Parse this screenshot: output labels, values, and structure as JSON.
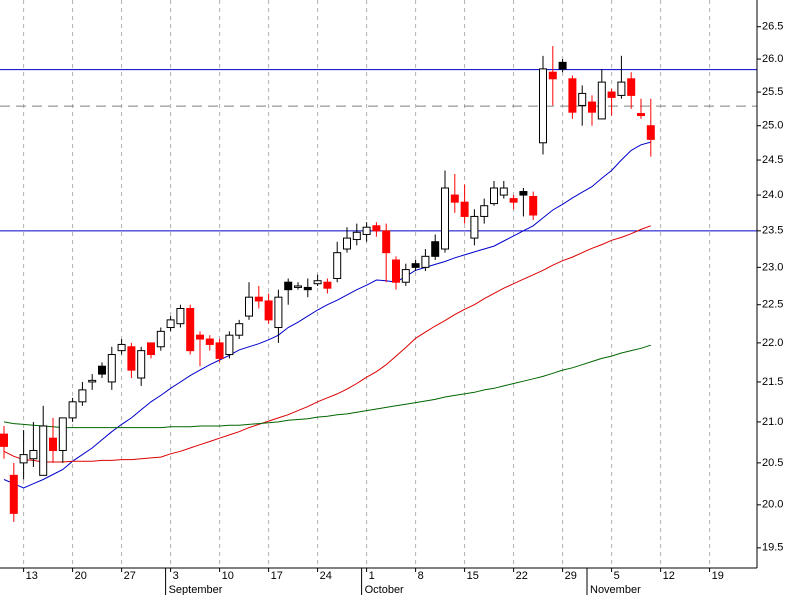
{
  "chart_data": {
    "type": "candlestick",
    "log_scale": true,
    "ylim": [
      19.27,
      26.92
    ],
    "yticks": [
      {
        "value": 19.5,
        "label": "19.5"
      },
      {
        "value": 20,
        "label": "20.0"
      },
      20.5,
      {
        "value": 21,
        "label": "21.0"
      },
      21.5,
      {
        "value": 22,
        "label": "22.0"
      },
      22.5,
      {
        "value": 23,
        "label": "23.0"
      },
      23.5,
      {
        "value": 24,
        "label": "24.0"
      },
      24.5,
      {
        "value": 25,
        "label": "25.0"
      },
      25.5,
      {
        "value": 26,
        "label": "26.0"
      },
      26.5
    ],
    "categories": [
      null,
      null,
      "13",
      null,
      null,
      null,
      null,
      "20",
      null,
      null,
      null,
      null,
      "27",
      null,
      null,
      null,
      null,
      "3",
      null,
      null,
      null,
      null,
      "10",
      null,
      null,
      null,
      null,
      "17",
      null,
      null,
      null,
      null,
      "24",
      null,
      null,
      null,
      null,
      "1",
      null,
      null,
      null,
      null,
      "8",
      null,
      null,
      null,
      null,
      "15",
      null,
      null,
      null,
      null,
      "22",
      null,
      null,
      null,
      null,
      "29",
      null,
      null,
      null,
      null,
      "5",
      null,
      null,
      null,
      null,
      "12",
      null,
      null,
      null,
      null,
      "19",
      null,
      null,
      null,
      null
    ],
    "month_labels": [
      null,
      null,
      null,
      null,
      null,
      null,
      null,
      null,
      null,
      null,
      null,
      null,
      null,
      null,
      null,
      null,
      null,
      "September",
      null,
      null,
      null,
      null,
      null,
      null,
      null,
      null,
      null,
      null,
      null,
      null,
      null,
      null,
      null,
      null,
      null,
      null,
      null,
      "October",
      null,
      null,
      null,
      null,
      null,
      null,
      null,
      null,
      null,
      null,
      null,
      null,
      null,
      null,
      null,
      null,
      null,
      null,
      null,
      null,
      null,
      null,
      "November",
      null,
      null,
      null,
      null,
      null,
      null,
      null,
      null,
      null,
      null,
      null,
      null,
      null,
      null,
      null,
      null
    ],
    "open": [
      20.85,
      20.35,
      20.5,
      20.55,
      20.35,
      20.8,
      20.65,
      21.05,
      21.25,
      21.5,
      21.6,
      21.5,
      21.9,
      21.95,
      21.55,
      22.0,
      21.95,
      22.2,
      22.25,
      22.45,
      22.1,
      22.05,
      22.0,
      21.85,
      22.1,
      22.35,
      22.6,
      22.55,
      22.2,
      22.7,
      22.73,
      22.7,
      22.78,
      22.8,
      22.85,
      23.25,
      23.38,
      23.45,
      23.57,
      23.5,
      23.1,
      22.8,
      23.0,
      23.0,
      23.15,
      23.25,
      24.0,
      23.9,
      23.4,
      23.7,
      23.88,
      24.0,
      23.95,
      24.0,
      23.98,
      24.75,
      25.8,
      25.85,
      25.7,
      25.3,
      25.35,
      25.1,
      25.5,
      25.45,
      25.7,
      25.18,
      25.0,
      null,
      null,
      null,
      null,
      null,
      null,
      null,
      null,
      null,
      null
    ],
    "high": [
      20.95,
      20.5,
      20.9,
      21.0,
      21.2,
      21.05,
      21.05,
      21.3,
      21.5,
      21.6,
      21.75,
      21.95,
      22.05,
      22.0,
      21.95,
      22.0,
      22.2,
      22.35,
      22.5,
      22.5,
      22.15,
      22.1,
      22.05,
      22.15,
      22.3,
      22.8,
      22.75,
      22.65,
      22.7,
      22.85,
      22.8,
      22.85,
      22.9,
      22.85,
      23.35,
      23.55,
      23.6,
      23.62,
      23.62,
      23.6,
      23.15,
      23.05,
      23.1,
      23.25,
      23.45,
      24.35,
      24.3,
      24.15,
      23.8,
      23.95,
      24.2,
      24.2,
      24.0,
      24.1,
      24.05,
      26.05,
      26.2,
      26.0,
      25.75,
      25.6,
      25.45,
      25.85,
      25.55,
      26.05,
      25.8,
      25.4,
      25.4,
      null,
      null,
      null,
      null,
      null,
      null,
      null,
      null,
      null,
      null
    ],
    "low": [
      20.55,
      19.8,
      20.3,
      20.45,
      20.35,
      20.5,
      20.5,
      21.0,
      21.2,
      21.4,
      21.55,
      21.4,
      21.85,
      21.55,
      21.45,
      21.8,
      21.9,
      22.15,
      22.2,
      21.85,
      21.7,
      21.9,
      21.75,
      21.8,
      22.05,
      22.3,
      22.45,
      22.25,
      22.0,
      22.5,
      22.7,
      22.6,
      22.75,
      22.65,
      22.8,
      23.2,
      23.3,
      23.35,
      23.42,
      22.8,
      22.7,
      22.75,
      22.95,
      22.95,
      23.1,
      23.2,
      23.75,
      23.6,
      23.3,
      23.6,
      23.85,
      23.95,
      23.8,
      23.7,
      23.65,
      24.58,
      25.3,
      25.8,
      25.1,
      25.0,
      25.0,
      25.1,
      25.15,
      25.4,
      25.25,
      25.1,
      24.55,
      null,
      null,
      null,
      null,
      null,
      null,
      null,
      null,
      null,
      null
    ],
    "close": [
      20.7,
      19.9,
      20.6,
      20.65,
      20.95,
      20.65,
      21.05,
      21.25,
      21.4,
      21.52,
      21.7,
      21.85,
      21.98,
      21.65,
      21.9,
      21.85,
      22.15,
      22.3,
      22.45,
      21.9,
      22.05,
      21.98,
      21.8,
      22.1,
      22.25,
      22.6,
      22.55,
      22.3,
      22.6,
      22.8,
      22.75,
      22.73,
      22.82,
      22.72,
      23.2,
      23.4,
      23.48,
      23.55,
      23.5,
      23.2,
      22.8,
      22.97,
      23.05,
      23.15,
      23.35,
      24.1,
      23.9,
      23.7,
      23.7,
      23.85,
      24.1,
      24.1,
      23.9,
      24.05,
      23.72,
      25.85,
      25.7,
      25.95,
      25.2,
      25.48,
      25.2,
      25.65,
      25.42,
      25.65,
      25.45,
      25.15,
      24.8,
      null,
      null,
      null,
      null,
      null,
      null,
      null,
      null,
      null,
      null
    ],
    "candle_colors": [
      "#ff0000",
      "#ff0000",
      "#ffffff",
      "#ffffff",
      "#ffffff",
      "#ff0000",
      "#ffffff",
      "#ffffff",
      "#ffffff",
      "#ffffff",
      "#000000",
      "#ffffff",
      "#ffffff",
      "#ff0000",
      "#ffffff",
      "#ff0000",
      "#ffffff",
      "#ffffff",
      "#ffffff",
      "#ff0000",
      "#ff0000",
      "#ff0000",
      "#ff0000",
      "#ffffff",
      "#ffffff",
      "#ffffff",
      "#ff0000",
      "#ff0000",
      "#ffffff",
      "#000000",
      "#ffffff",
      "#000000",
      "#ffffff",
      "#ff0000",
      "#ffffff",
      "#ffffff",
      "#ffffff",
      "#ffffff",
      "#ff0000",
      "#ff0000",
      "#ff0000",
      "#ffffff",
      "#000000",
      "#ffffff",
      "#000000",
      "#ffffff",
      "#ff0000",
      "#ff0000",
      "#ffffff",
      "#ffffff",
      "#ffffff",
      "#ffffff",
      "#ff0000",
      "#000000",
      "#ff0000",
      "#ffffff",
      "#ff0000",
      "#000000",
      "#ff0000",
      "#ffffff",
      "#ff0000",
      "#ffffff",
      "#ff0000",
      "#ffffff",
      "#ff0000",
      "#ff0000",
      "#ff0000",
      null,
      null,
      null,
      null,
      null,
      null,
      null,
      null,
      null,
      null
    ],
    "moving_averages": [
      {
        "color": "#0000cc",
        "values": [
          20.3,
          20.25,
          20.2,
          20.25,
          20.3,
          20.36,
          20.42,
          20.52,
          20.6,
          20.68,
          20.78,
          20.88,
          20.97,
          21.05,
          21.15,
          21.25,
          21.33,
          21.42,
          21.5,
          21.58,
          21.65,
          21.72,
          21.78,
          21.84,
          21.91,
          21.95,
          21.99,
          22.04,
          22.1,
          22.2,
          22.27,
          22.35,
          22.43,
          22.5,
          22.56,
          22.63,
          22.7,
          22.76,
          22.83,
          22.82,
          22.8,
          22.88,
          22.96,
          23.0,
          23.04,
          23.08,
          23.13,
          23.17,
          23.21,
          23.25,
          23.29,
          23.36,
          23.43,
          23.5,
          23.57,
          23.68,
          23.79,
          23.87,
          23.96,
          24.04,
          24.12,
          24.24,
          24.35,
          24.5,
          24.64,
          24.72,
          24.76,
          null,
          null,
          null,
          null,
          null,
          null,
          null,
          null,
          null,
          null
        ]
      },
      {
        "color": "#dd0000",
        "values": [
          20.64,
          20.58,
          20.54,
          20.53,
          20.51,
          20.51,
          20.51,
          20.52,
          20.52,
          20.52,
          20.53,
          20.53,
          20.54,
          20.54,
          20.55,
          20.56,
          20.57,
          20.61,
          20.64,
          20.68,
          20.72,
          20.76,
          20.8,
          20.84,
          20.88,
          20.93,
          20.97,
          21.01,
          21.05,
          21.09,
          21.14,
          21.19,
          21.25,
          21.3,
          21.35,
          21.41,
          21.48,
          21.56,
          21.63,
          21.72,
          21.83,
          21.94,
          22.06,
          22.14,
          22.22,
          22.29,
          22.37,
          22.44,
          22.5,
          22.58,
          22.65,
          22.72,
          22.78,
          22.84,
          22.9,
          22.96,
          23.03,
          23.09,
          23.14,
          23.2,
          23.26,
          23.31,
          23.37,
          23.41,
          23.46,
          23.52,
          23.57,
          null,
          null,
          null,
          null,
          null,
          null,
          null,
          null,
          null,
          null
        ]
      },
      {
        "color": "#006600",
        "values": [
          21.0,
          20.98,
          20.97,
          20.96,
          20.95,
          20.94,
          20.93,
          20.93,
          20.93,
          20.93,
          20.93,
          20.93,
          20.93,
          20.93,
          20.93,
          20.93,
          20.93,
          20.94,
          20.94,
          20.94,
          20.95,
          20.95,
          20.95,
          20.96,
          20.96,
          20.97,
          20.98,
          20.99,
          21.0,
          21.02,
          21.03,
          21.04,
          21.06,
          21.07,
          21.09,
          21.1,
          21.12,
          21.14,
          21.16,
          21.18,
          21.2,
          21.22,
          21.24,
          21.26,
          21.28,
          21.31,
          21.33,
          21.35,
          21.37,
          21.4,
          21.42,
          21.45,
          21.48,
          21.51,
          21.54,
          21.57,
          21.61,
          21.65,
          21.68,
          21.72,
          21.76,
          21.8,
          21.83,
          21.87,
          21.9,
          21.93,
          21.97,
          null,
          null,
          null,
          null,
          null,
          null,
          null,
          null,
          null,
          null
        ]
      }
    ],
    "hlines": [
      {
        "value": 25.84,
        "color": "#0000cc",
        "style": "solid"
      },
      {
        "value": 25.29,
        "color": "#808080",
        "style": "dashed"
      },
      {
        "value": 23.5,
        "color": "#0000cc",
        "style": "solid"
      }
    ],
    "grid": true
  }
}
